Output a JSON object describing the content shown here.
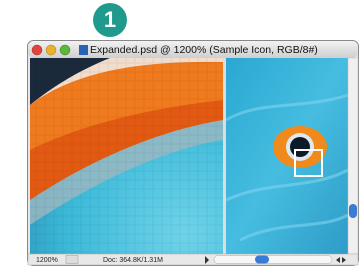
{
  "badge": "1",
  "window": {
    "title": "Expanded.psd @ 1200% (Sample Icon, RGB/8#)",
    "zoom": "1200%",
    "doc_info": "Doc: 364.8K/1.31M"
  }
}
